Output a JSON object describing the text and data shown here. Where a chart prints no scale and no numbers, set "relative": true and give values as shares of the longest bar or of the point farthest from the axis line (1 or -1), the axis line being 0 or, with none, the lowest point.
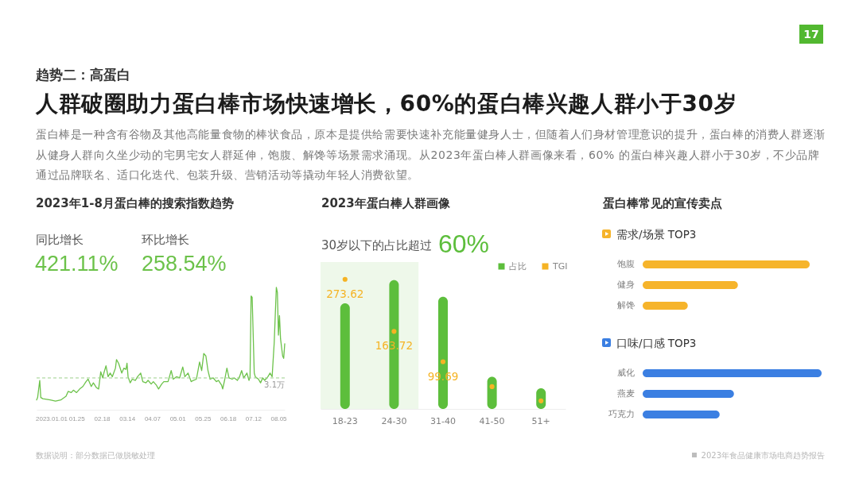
{
  "chart_data": [
    {
      "type": "other",
      "subtitle": "趋势二：高蛋白",
      "title": "人群破圈助力蛋白棒市场快速增长，60%的蛋白棒兴趣人群小于30岁",
      "annotations": [
        "蛋白棒是一种含有谷物及其他高能量食物的棒状食品，原本是提供给需要快速补充能量健身人士，但随着人们身材管理意识的提升，蛋白棒的消费人群逐渐从健身人群向久坐少动的宅男宅女人群延伸，饱腹、解馋等场景需求涌现。从2023年蛋白棒人群画像来看，60% 的蛋白棒兴趣人群小于30岁，不少品牌通过品牌联名、适口化迭代、包装升级、营销活动等撬动年轻人消费欲望。",
        "数据说明：部分数据已做脱敏处理",
        "2023年食品健康市场电商趋势报告",
        "17"
      ]
    },
    {
      "type": "line",
      "title": "2023年1-8月蛋白棒的搜索指数趋势",
      "annotations": [
        "同比增长",
        "421.11%",
        "环比增长",
        "258.54%"
      ],
      "relative": true,
      "color": "#6cc24a",
      "x": [
        "2022-12-18",
        "2022-12-19",
        "2022-12-21",
        "2022-12-22",
        "2022-12-24",
        "2022-12-31",
        "2023-01-05",
        "2023-01-10",
        "2023-01-15",
        "2023-01-17",
        "2023-01-20",
        "2023-01-22",
        "2023-01-25",
        "2023-01-28",
        "2023-01-31",
        "2023-02-03",
        "2023-02-05",
        "2023-02-08",
        "2023-02-10",
        "2023-02-13",
        "2023-02-15",
        "2023-02-17",
        "2023-02-19",
        "2023-02-20",
        "2023-02-22",
        "2023-02-24",
        "2023-02-26",
        "2023-02-28",
        "2023-03-03",
        "2023-03-04",
        "2023-03-06",
        "2023-03-09",
        "2023-03-11",
        "2023-03-13",
        "2023-03-14",
        "2023-03-15",
        "2023-03-17",
        "2023-03-19",
        "2023-03-22",
        "2023-03-24",
        "2023-03-27",
        "2023-03-29",
        "2023-04-01",
        "2023-04-03",
        "2023-04-06",
        "2023-04-08",
        "2023-04-11",
        "2023-04-13",
        "2023-04-16",
        "2023-04-18",
        "2023-04-22",
        "2023-04-25",
        "2023-04-27",
        "2023-04-30",
        "2023-05-03",
        "2023-05-06",
        "2023-05-08",
        "2023-05-11",
        "2023-05-14",
        "2023-05-16",
        "2023-05-19",
        "2023-05-22",
        "2023-05-24",
        "2023-05-26",
        "2023-05-28",
        "2023-05-30",
        "2023-06-01",
        "2023-06-04",
        "2023-06-07",
        "2023-06-09",
        "2023-06-12",
        "2023-06-13",
        "2023-06-15",
        "2023-06-17",
        "2023-06-19",
        "2023-06-22",
        "2023-06-24",
        "2023-06-27",
        "2023-06-29",
        "2023-07-01",
        "2023-07-03",
        "2023-07-06",
        "2023-07-08",
        "2023-07-09",
        "2023-07-10",
        "2023-07-11",
        "2023-07-13",
        "2023-07-14",
        "2023-07-17",
        "2023-07-19",
        "2023-07-21",
        "2023-07-23",
        "2023-07-26",
        "2023-07-28",
        "2023-07-30",
        "2023-08-01",
        "2023-08-03",
        "2023-08-04",
        "2023-08-05",
        "2023-08-06",
        "2023-08-07",
        "2023-08-09",
        "2023-08-10",
        "2023-08-11"
      ],
      "values": [
        0.08,
        0.1,
        0.24,
        0.1,
        0.09,
        0.08,
        0.07,
        0.08,
        0.11,
        0.15,
        0.14,
        0.16,
        0.14,
        0.17,
        0.19,
        0.23,
        0.25,
        0.19,
        0.22,
        0.18,
        0.17,
        0.31,
        0.26,
        0.3,
        0.36,
        0.27,
        0.3,
        0.27,
        0.34,
        0.41,
        0.38,
        0.3,
        0.34,
        0.33,
        0.38,
        0.27,
        0.22,
        0.25,
        0.24,
        0.27,
        0.3,
        0.23,
        0.22,
        0.24,
        0.21,
        0.23,
        0.2,
        0.17,
        0.21,
        0.23,
        0.23,
        0.32,
        0.25,
        0.27,
        0.26,
        0.35,
        0.27,
        0.3,
        0.23,
        0.24,
        0.25,
        0.39,
        0.32,
        0.46,
        0.44,
        0.32,
        0.25,
        0.26,
        0.23,
        0.24,
        0.2,
        0.17,
        0.25,
        0.34,
        0.26,
        0.25,
        0.26,
        0.24,
        0.27,
        0.32,
        0.26,
        0.3,
        0.24,
        0.27,
        0.93,
        0.92,
        0.3,
        0.27,
        0.25,
        0.22,
        0.26,
        0.24,
        0.27,
        0.3,
        0.27,
        0.55,
        1.0,
        0.96,
        0.61,
        0.77,
        0.58,
        0.44,
        0.42,
        0.54
      ],
      "xlim": [
        "2022-12-18",
        "2023-08-11"
      ],
      "xticks": [
        {
          "value": "2023-01-01",
          "label": "2023.01.01"
        },
        {
          "value": "2023-01-25",
          "label": "01.25"
        },
        {
          "value": "2023-02-18",
          "label": "02.18"
        },
        {
          "value": "2023-03-14",
          "label": "03.14"
        },
        {
          "value": "2023-04-07",
          "label": "04.07"
        },
        {
          "value": "2023-05-01",
          "label": "05.01"
        },
        {
          "value": "2023-05-25",
          "label": "05.25"
        },
        {
          "value": "2023-06-18",
          "label": "06.18"
        },
        {
          "value": "2023-07-12",
          "label": "07.12"
        },
        {
          "value": "2023-08-05",
          "label": "08.05"
        }
      ],
      "ref_lines": [
        {
          "axis": "y",
          "value": 0.26,
          "label": "3.1万",
          "line_style": "dashed",
          "color": "#9ccf8a"
        }
      ]
    },
    {
      "type": "bar",
      "title": "2023年蛋白棒人群画像",
      "annotations": [
        "30岁以下的占比超过",
        "60%"
      ],
      "relative": true,
      "categories": [
        "18-23",
        "24-30",
        "31-40",
        "41-50",
        "51+"
      ],
      "series": [
        {
          "name": "占比",
          "color": "#5dbe3c",
          "values": [
            0.82,
            1,
            0.87,
            0.25,
            0.16
          ]
        }
      ],
      "legend": "top right",
      "bands": [
        {
          "axis": "x",
          "from": "18-23",
          "to": "24-30",
          "color": "#eef8ea"
        }
      ]
    },
    {
      "type": "scatter",
      "categories": [
        null,
        null,
        null,
        null,
        null
      ],
      "series": [
        {
          "name": "TGI",
          "color": "#f5b324",
          "values": [
            273.62,
            163.72,
            99.69,
            47,
            17
          ],
          "value_labels": [
            "273.62",
            "163.72",
            "99.69",
            null,
            null
          ]
        }
      ],
      "legend": "top right"
    },
    {
      "type": "bar",
      "orientation": "horizontal",
      "title": "蛋白棒常见的宣传卖点",
      "subtitle": "需求/场景 TOP3",
      "relative": true,
      "categories": [
        "饱腹",
        "健身",
        "解馋"
      ],
      "values": [
        1,
        0.57,
        0.27
      ],
      "color": "#f6b42b"
    },
    {
      "type": "bar",
      "orientation": "horizontal",
      "title": "口味/口感 TOP3",
      "relative": true,
      "categories": [
        "威化",
        "燕麦",
        "巧克力"
      ],
      "values": [
        1,
        0.51,
        0.43
      ],
      "color": "#3b7fe2"
    }
  ]
}
